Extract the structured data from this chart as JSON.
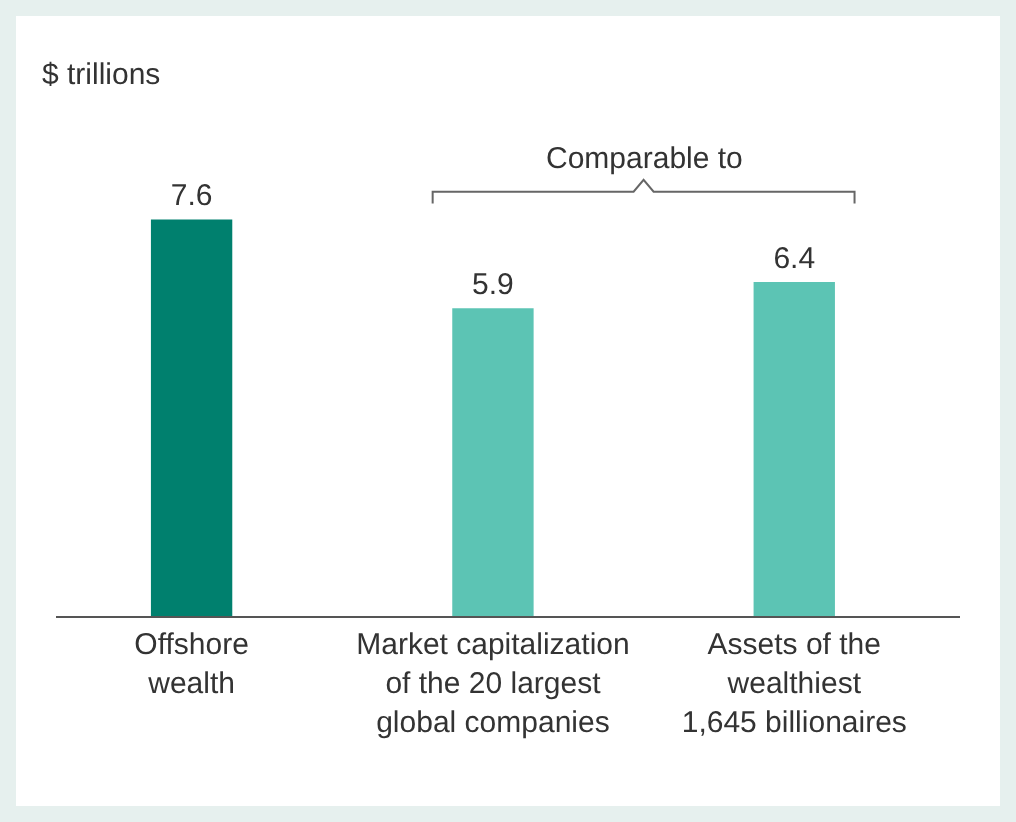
{
  "chart_data": {
    "type": "bar",
    "categories": [
      "Offshore\nwealth",
      "Market capitalization\nof the 20 largest\nglobal companies",
      "Assets of the\nwealthiest\n1,645 billionaires"
    ],
    "values": [
      7.6,
      5.9,
      6.4
    ],
    "colors": [
      "#00806e",
      "#5cc4b4",
      "#5cc4b4"
    ],
    "data_labels": true,
    "annotations": [
      "$ trillions",
      "Comparable to"
    ]
  }
}
